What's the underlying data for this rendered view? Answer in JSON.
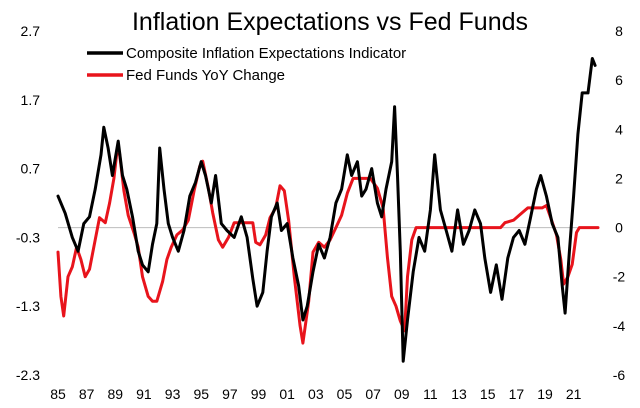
{
  "chart_data": {
    "type": "line",
    "title": "Inflation Expectations vs Fed Funds",
    "legend_position": "top-left",
    "grid": false,
    "x_ticks": [
      "85",
      "87",
      "89",
      "91",
      "93",
      "95",
      "97",
      "99",
      "01",
      "03",
      "05",
      "07",
      "09",
      "11",
      "13",
      "15",
      "17",
      "19",
      "21"
    ],
    "x_range": [
      1985,
      2022.7
    ],
    "y_left": {
      "range": [
        -2.3,
        2.7
      ],
      "ticks": [
        "2.7",
        "1.7",
        "0.7",
        "-0.3",
        "-1.3",
        "-2.3"
      ]
    },
    "y_right": {
      "range": [
        -6,
        8
      ],
      "ticks": [
        "8",
        "6",
        "4",
        "2",
        "0",
        "-2",
        "-4",
        "-6"
      ]
    },
    "series": [
      {
        "name": "Composite Inflation Expectations Indicator",
        "color": "#000000",
        "axis": "left",
        "points": [
          [
            1985.0,
            0.3
          ],
          [
            1985.5,
            0.05
          ],
          [
            1986.0,
            -0.3
          ],
          [
            1986.4,
            -0.5
          ],
          [
            1986.8,
            -0.1
          ],
          [
            1987.2,
            0.0
          ],
          [
            1987.6,
            0.4
          ],
          [
            1988.0,
            0.9
          ],
          [
            1988.2,
            1.3
          ],
          [
            1988.5,
            1.0
          ],
          [
            1988.8,
            0.6
          ],
          [
            1989.2,
            1.1
          ],
          [
            1989.5,
            0.6
          ],
          [
            1989.8,
            0.4
          ],
          [
            1990.2,
            0.0
          ],
          [
            1990.6,
            -0.5
          ],
          [
            1990.9,
            -0.7
          ],
          [
            1991.3,
            -0.8
          ],
          [
            1991.6,
            -0.4
          ],
          [
            1991.9,
            -0.1
          ],
          [
            1992.1,
            1.0
          ],
          [
            1992.4,
            0.4
          ],
          [
            1992.7,
            -0.1
          ],
          [
            1993.0,
            -0.3
          ],
          [
            1993.4,
            -0.5
          ],
          [
            1993.8,
            -0.2
          ],
          [
            1994.2,
            0.3
          ],
          [
            1994.6,
            0.5
          ],
          [
            1995.0,
            0.8
          ],
          [
            1995.3,
            0.6
          ],
          [
            1995.7,
            0.2
          ],
          [
            1996.0,
            0.6
          ],
          [
            1996.4,
            -0.1
          ],
          [
            1996.8,
            -0.2
          ],
          [
            1997.3,
            -0.3
          ],
          [
            1997.8,
            0.0
          ],
          [
            1998.2,
            -0.3
          ],
          [
            1998.6,
            -0.9
          ],
          [
            1998.9,
            -1.3
          ],
          [
            1999.3,
            -1.1
          ],
          [
            1999.6,
            -0.5
          ],
          [
            1999.9,
            0.0
          ],
          [
            2000.3,
            0.2
          ],
          [
            2000.6,
            -0.2
          ],
          [
            2001.0,
            -0.1
          ],
          [
            2001.4,
            -0.6
          ],
          [
            2001.8,
            -1.0
          ],
          [
            2002.1,
            -1.5
          ],
          [
            2002.4,
            -1.3
          ],
          [
            2002.8,
            -0.8
          ],
          [
            2003.2,
            -0.4
          ],
          [
            2003.6,
            -0.6
          ],
          [
            2004.0,
            -0.3
          ],
          [
            2004.4,
            0.2
          ],
          [
            2004.8,
            0.4
          ],
          [
            2005.2,
            0.9
          ],
          [
            2005.5,
            0.6
          ],
          [
            2005.9,
            0.8
          ],
          [
            2006.2,
            0.3
          ],
          [
            2006.5,
            0.4
          ],
          [
            2006.9,
            0.7
          ],
          [
            2007.3,
            0.2
          ],
          [
            2007.6,
            0.0
          ],
          [
            2007.9,
            0.4
          ],
          [
            2008.3,
            0.8
          ],
          [
            2008.5,
            1.6
          ],
          [
            2008.7,
            0.6
          ],
          [
            2008.9,
            -0.5
          ],
          [
            2009.1,
            -2.1
          ],
          [
            2009.4,
            -1.5
          ],
          [
            2009.8,
            -0.8
          ],
          [
            2010.2,
            -0.3
          ],
          [
            2010.6,
            -0.5
          ],
          [
            2011.0,
            0.1
          ],
          [
            2011.3,
            0.9
          ],
          [
            2011.7,
            0.1
          ],
          [
            2012.1,
            -0.2
          ],
          [
            2012.5,
            -0.5
          ],
          [
            2012.9,
            0.1
          ],
          [
            2013.3,
            -0.4
          ],
          [
            2013.7,
            -0.2
          ],
          [
            2014.1,
            0.1
          ],
          [
            2014.5,
            -0.1
          ],
          [
            2014.8,
            -0.6
          ],
          [
            2015.2,
            -1.1
          ],
          [
            2015.6,
            -0.7
          ],
          [
            2016.0,
            -1.2
          ],
          [
            2016.4,
            -0.6
          ],
          [
            2016.8,
            -0.3
          ],
          [
            2017.2,
            -0.2
          ],
          [
            2017.6,
            -0.4
          ],
          [
            2018.0,
            0.0
          ],
          [
            2018.4,
            0.4
          ],
          [
            2018.7,
            0.6
          ],
          [
            2019.1,
            0.3
          ],
          [
            2019.5,
            -0.1
          ],
          [
            2019.9,
            -0.3
          ],
          [
            2020.2,
            -1.0
          ],
          [
            2020.4,
            -1.4
          ],
          [
            2020.7,
            -0.5
          ],
          [
            2021.0,
            0.3
          ],
          [
            2021.3,
            1.2
          ],
          [
            2021.6,
            1.8
          ],
          [
            2022.0,
            1.8
          ],
          [
            2022.3,
            2.3
          ],
          [
            2022.5,
            2.2
          ]
        ]
      },
      {
        "name": "Fed Funds YoY Change",
        "color": "#e8141c",
        "axis": "right",
        "points": [
          [
            1985.0,
            -1.0
          ],
          [
            1985.2,
            -2.8
          ],
          [
            1985.4,
            -3.6
          ],
          [
            1985.7,
            -2.0
          ],
          [
            1986.0,
            -1.6
          ],
          [
            1986.3,
            -0.8
          ],
          [
            1986.6,
            -1.3
          ],
          [
            1986.9,
            -2.0
          ],
          [
            1987.2,
            -1.7
          ],
          [
            1987.6,
            -0.5
          ],
          [
            1987.9,
            0.4
          ],
          [
            1988.3,
            0.2
          ],
          [
            1988.6,
            1.0
          ],
          [
            1988.9,
            2.0
          ],
          [
            1989.1,
            3.0
          ],
          [
            1989.3,
            3.0
          ],
          [
            1989.6,
            1.5
          ],
          [
            1989.9,
            0.5
          ],
          [
            1990.3,
            -0.2
          ],
          [
            1990.6,
            -0.8
          ],
          [
            1990.9,
            -2.0
          ],
          [
            1991.3,
            -2.8
          ],
          [
            1991.6,
            -3.0
          ],
          [
            1991.9,
            -3.0
          ],
          [
            1992.3,
            -2.2
          ],
          [
            1992.6,
            -1.3
          ],
          [
            1992.9,
            -0.8
          ],
          [
            1993.3,
            -0.3
          ],
          [
            1993.7,
            -0.1
          ],
          [
            1994.1,
            0.3
          ],
          [
            1994.5,
            1.5
          ],
          [
            1994.9,
            2.5
          ],
          [
            1995.1,
            2.7
          ],
          [
            1995.5,
            1.6
          ],
          [
            1995.8,
            0.6
          ],
          [
            1996.2,
            -0.5
          ],
          [
            1996.5,
            -0.8
          ],
          [
            1996.9,
            -0.4
          ],
          [
            1997.3,
            0.2
          ],
          [
            1997.7,
            0.2
          ],
          [
            1998.2,
            0.2
          ],
          [
            1998.6,
            0.2
          ],
          [
            1998.8,
            -0.6
          ],
          [
            1999.1,
            -0.7
          ],
          [
            1999.5,
            -0.3
          ],
          [
            1999.8,
            0.4
          ],
          [
            2000.2,
            0.8
          ],
          [
            2000.5,
            1.7
          ],
          [
            2000.8,
            1.5
          ],
          [
            2001.1,
            0.3
          ],
          [
            2001.5,
            -2.0
          ],
          [
            2001.9,
            -4.0
          ],
          [
            2002.1,
            -4.7
          ],
          [
            2002.5,
            -3.0
          ],
          [
            2002.8,
            -1.0
          ],
          [
            2003.2,
            -0.6
          ],
          [
            2003.6,
            -0.8
          ],
          [
            2004.0,
            -0.5
          ],
          [
            2004.4,
            0.0
          ],
          [
            2004.8,
            0.5
          ],
          [
            2005.2,
            1.4
          ],
          [
            2005.6,
            2.0
          ],
          [
            2006.0,
            2.0
          ],
          [
            2006.4,
            2.0
          ],
          [
            2006.8,
            2.0
          ],
          [
            2007.3,
            1.6
          ],
          [
            2007.7,
            0.8
          ],
          [
            2008.0,
            -1.2
          ],
          [
            2008.3,
            -2.8
          ],
          [
            2008.6,
            -3.2
          ],
          [
            2008.9,
            -3.8
          ],
          [
            2009.2,
            -4.2
          ],
          [
            2009.4,
            -2.0
          ],
          [
            2009.7,
            -0.5
          ],
          [
            2010.0,
            0.0
          ],
          [
            2011.0,
            0.0
          ],
          [
            2012.0,
            0.0
          ],
          [
            2013.0,
            0.0
          ],
          [
            2014.0,
            0.0
          ],
          [
            2015.0,
            0.0
          ],
          [
            2015.9,
            0.0
          ],
          [
            2016.2,
            0.2
          ],
          [
            2016.8,
            0.3
          ],
          [
            2017.2,
            0.5
          ],
          [
            2017.8,
            0.8
          ],
          [
            2018.3,
            0.8
          ],
          [
            2018.8,
            0.8
          ],
          [
            2019.1,
            0.9
          ],
          [
            2019.4,
            0.4
          ],
          [
            2019.8,
            -0.3
          ],
          [
            2020.1,
            -1.3
          ],
          [
            2020.3,
            -2.3
          ],
          [
            2020.6,
            -2.0
          ],
          [
            2020.9,
            -1.5
          ],
          [
            2021.2,
            -0.2
          ],
          [
            2021.4,
            0.0
          ],
          [
            2022.7,
            0.0
          ]
        ]
      }
    ]
  }
}
